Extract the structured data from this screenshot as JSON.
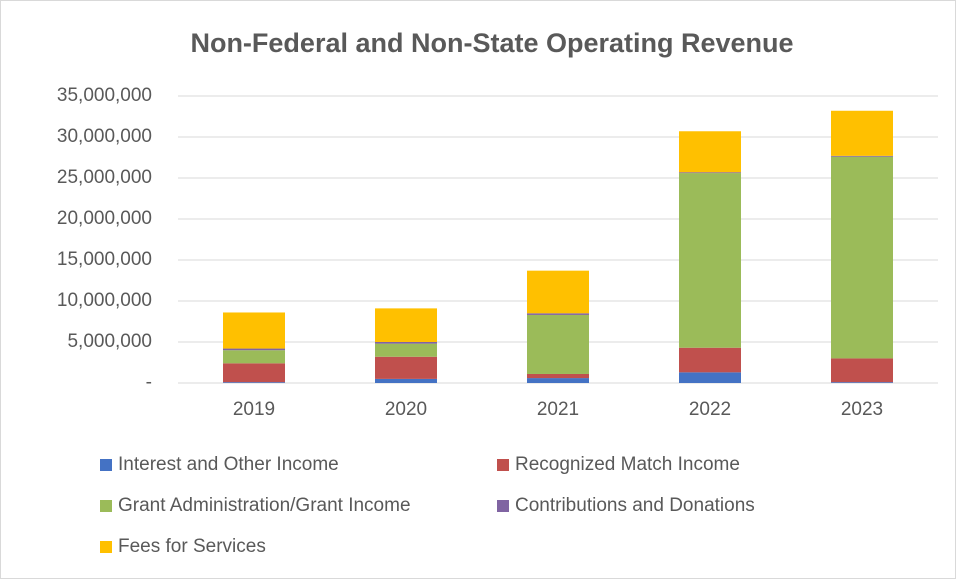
{
  "chart_data": {
    "type": "stacked_bar",
    "title": "Non-Federal and Non-State Operating Revenue",
    "categories": [
      "2019",
      "2020",
      "2021",
      "2022",
      "2023"
    ],
    "series": [
      {
        "name": "Interest and Other Income",
        "color": "#4472c4",
        "values": [
          100000,
          500000,
          600000,
          1300000,
          100000
        ]
      },
      {
        "name": "Recognized Match Income",
        "color": "#c0504d",
        "values": [
          2300000,
          2700000,
          500000,
          3000000,
          2900000
        ]
      },
      {
        "name": "Grant Administration/Grant Income",
        "color": "#9bbb59",
        "values": [
          1600000,
          1600000,
          7200000,
          21300000,
          24600000
        ]
      },
      {
        "name": "Contributions and Donations",
        "color": "#8064a2",
        "values": [
          200000,
          200000,
          200000,
          100000,
          100000
        ]
      },
      {
        "name": "Fees for Services",
        "color": "#ffc000",
        "values": [
          4400000,
          4100000,
          5200000,
          5000000,
          5500000
        ]
      }
    ],
    "ylim": [
      0,
      35000000
    ],
    "yticks": [
      {
        "value": 0,
        "label": "-"
      },
      {
        "value": 5000000,
        "label": "5,000,000"
      },
      {
        "value": 10000000,
        "label": "10,000,000"
      },
      {
        "value": 15000000,
        "label": "15,000,000"
      },
      {
        "value": 20000000,
        "label": "20,000,000"
      },
      {
        "value": 25000000,
        "label": "25,000,000"
      },
      {
        "value": 30000000,
        "label": "30,000,000"
      },
      {
        "value": 35000000,
        "label": "35,000,000"
      }
    ],
    "grid": true
  }
}
